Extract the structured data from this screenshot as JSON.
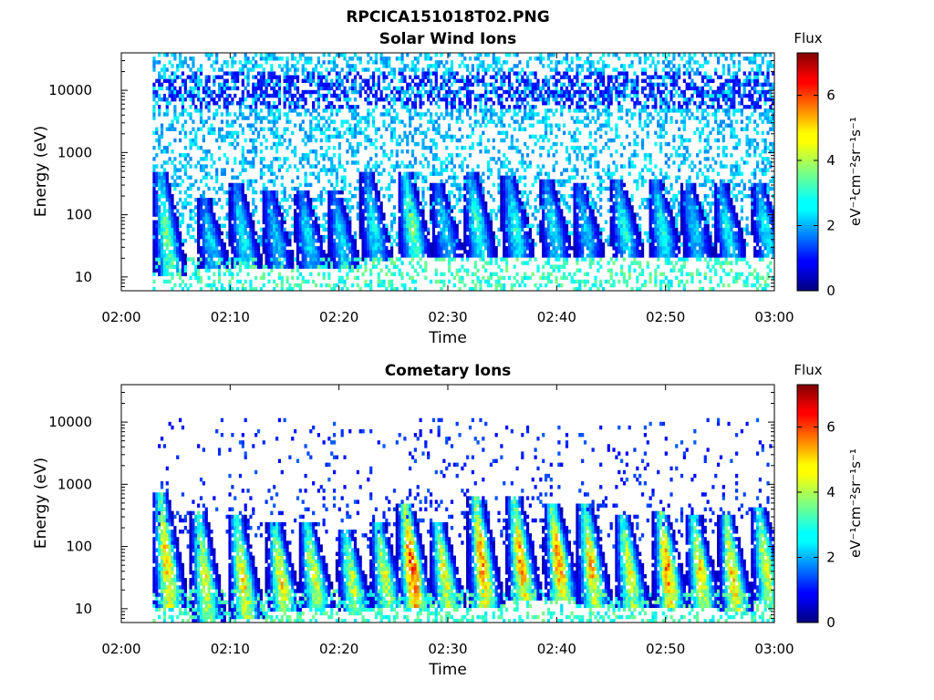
{
  "figure": {
    "filename": "RPCICA151018T02.PNG"
  },
  "chart_data": [
    {
      "type": "heatmap",
      "title": "Solar Wind Ions",
      "xlabel": "Time",
      "ylabel": "Energy (eV)",
      "xlim": [
        "02:00",
        "03:00"
      ],
      "xticks": [
        "02:00",
        "02:10",
        "02:20",
        "02:30",
        "02:40",
        "02:50",
        "03:00"
      ],
      "yscale": "log",
      "ylim": [
        6,
        40000
      ],
      "yticks": [
        10,
        100,
        1000,
        10000
      ],
      "yticklabels": [
        "10",
        "100",
        "1000",
        "10000"
      ],
      "data_start": "02:03",
      "data_end": "03:00",
      "colorbar": {
        "title": "Flux",
        "label": "eV⁻¹cm⁻²sr⁻¹s⁻¹",
        "range": [
          0,
          7.3
        ],
        "ticks": [
          0,
          2,
          4,
          6
        ],
        "ticklabels": [
          "0",
          "2",
          "4",
          "6"
        ],
        "colormap": "jet"
      },
      "bursts": [
        {
          "time": "02:04",
          "emin": 15,
          "emax": 400,
          "peak": 3.6
        },
        {
          "time": "02:08",
          "emin": 20,
          "emax": 150,
          "peak": 2.6
        },
        {
          "time": "02:11",
          "emin": 20,
          "emax": 250,
          "peak": 2.8
        },
        {
          "time": "02:14",
          "emin": 20,
          "emax": 200,
          "peak": 2.4
        },
        {
          "time": "02:17",
          "emin": 20,
          "emax": 200,
          "peak": 2.7
        },
        {
          "time": "02:20",
          "emin": 20,
          "emax": 200,
          "peak": 2.6
        },
        {
          "time": "02:23",
          "emin": 25,
          "emax": 400,
          "peak": 2.8
        },
        {
          "time": "02:26.5",
          "emin": 30,
          "emax": 400,
          "peak": 3.7
        },
        {
          "time": "02:29.5",
          "emin": 30,
          "emax": 250,
          "peak": 2.5
        },
        {
          "time": "02:32.5",
          "emin": 30,
          "emax": 400,
          "peak": 3.2
        },
        {
          "time": "02:36",
          "emin": 30,
          "emax": 350,
          "peak": 3.0
        },
        {
          "time": "02:39.5",
          "emin": 30,
          "emax": 300,
          "peak": 2.8
        },
        {
          "time": "02:42.5",
          "emin": 30,
          "emax": 250,
          "peak": 2.5
        },
        {
          "time": "02:46",
          "emin": 30,
          "emax": 300,
          "peak": 3.0
        },
        {
          "time": "02:49.5",
          "emin": 30,
          "emax": 300,
          "peak": 3.0
        },
        {
          "time": "02:52.5",
          "emin": 30,
          "emax": 250,
          "peak": 2.6
        },
        {
          "time": "02:55.5",
          "emin": 30,
          "emax": 250,
          "peak": 2.8
        },
        {
          "time": "02:59",
          "emin": 30,
          "emax": 250,
          "peak": 2.8
        }
      ],
      "background": {
        "emin": 30,
        "emax": 40000,
        "level": 1.8,
        "band_center": 10000,
        "band_level": 0.8
      }
    },
    {
      "type": "heatmap",
      "title": "Cometary Ions",
      "xlabel": "Time",
      "ylabel": "Energy (eV)",
      "xlim": [
        "02:00",
        "03:00"
      ],
      "xticks": [
        "02:00",
        "02:10",
        "02:20",
        "02:30",
        "02:40",
        "02:50",
        "03:00"
      ],
      "yscale": "log",
      "ylim": [
        6,
        40000
      ],
      "yticks": [
        10,
        100,
        1000,
        10000
      ],
      "yticklabels": [
        "10",
        "100",
        "1000",
        "10000"
      ],
      "data_start": "02:03",
      "data_end": "03:00",
      "colorbar": {
        "title": "Flux",
        "label": "eV⁻¹cm⁻²sr⁻¹s⁻¹",
        "range": [
          0,
          7.3
        ],
        "ticks": [
          0,
          2,
          4,
          6
        ],
        "ticklabels": [
          "0",
          "2",
          "4",
          "6"
        ],
        "colormap": "jet"
      },
      "bursts": [
        {
          "time": "02:04",
          "emin": 15,
          "emax": 600,
          "peak": 5.0
        },
        {
          "time": "02:07.5",
          "emin": 8,
          "emax": 300,
          "peak": 4.6
        },
        {
          "time": "02:11",
          "emin": 10,
          "emax": 250,
          "peak": 4.8
        },
        {
          "time": "02:14.5",
          "emin": 12,
          "emax": 200,
          "peak": 4.8
        },
        {
          "time": "02:17.5",
          "emin": 15,
          "emax": 200,
          "peak": 4.5
        },
        {
          "time": "02:21",
          "emin": 12,
          "emax": 150,
          "peak": 4.3
        },
        {
          "time": "02:24",
          "emin": 15,
          "emax": 200,
          "peak": 4.4
        },
        {
          "time": "02:26.5",
          "emin": 15,
          "emax": 400,
          "peak": 6.0
        },
        {
          "time": "02:29.5",
          "emin": 15,
          "emax": 200,
          "peak": 4.5
        },
        {
          "time": "02:33",
          "emin": 15,
          "emax": 500,
          "peak": 5.4
        },
        {
          "time": "02:36.5",
          "emin": 20,
          "emax": 500,
          "peak": 5.2
        },
        {
          "time": "02:40",
          "emin": 20,
          "emax": 400,
          "peak": 5.4
        },
        {
          "time": "02:43",
          "emin": 15,
          "emax": 400,
          "peak": 5.0
        },
        {
          "time": "02:46.5",
          "emin": 15,
          "emax": 250,
          "peak": 4.6
        },
        {
          "time": "02:50",
          "emin": 15,
          "emax": 300,
          "peak": 5.4
        },
        {
          "time": "02:53",
          "emin": 15,
          "emax": 250,
          "peak": 4.8
        },
        {
          "time": "02:56",
          "emin": 12,
          "emax": 250,
          "peak": 5.0
        },
        {
          "time": "02:59",
          "emin": 20,
          "emax": 350,
          "peak": 4.4
        }
      ],
      "background": {
        "emin": 100,
        "emax": 12000,
        "level": 0.9,
        "band_center": 300,
        "band_level": 1.2
      }
    }
  ]
}
